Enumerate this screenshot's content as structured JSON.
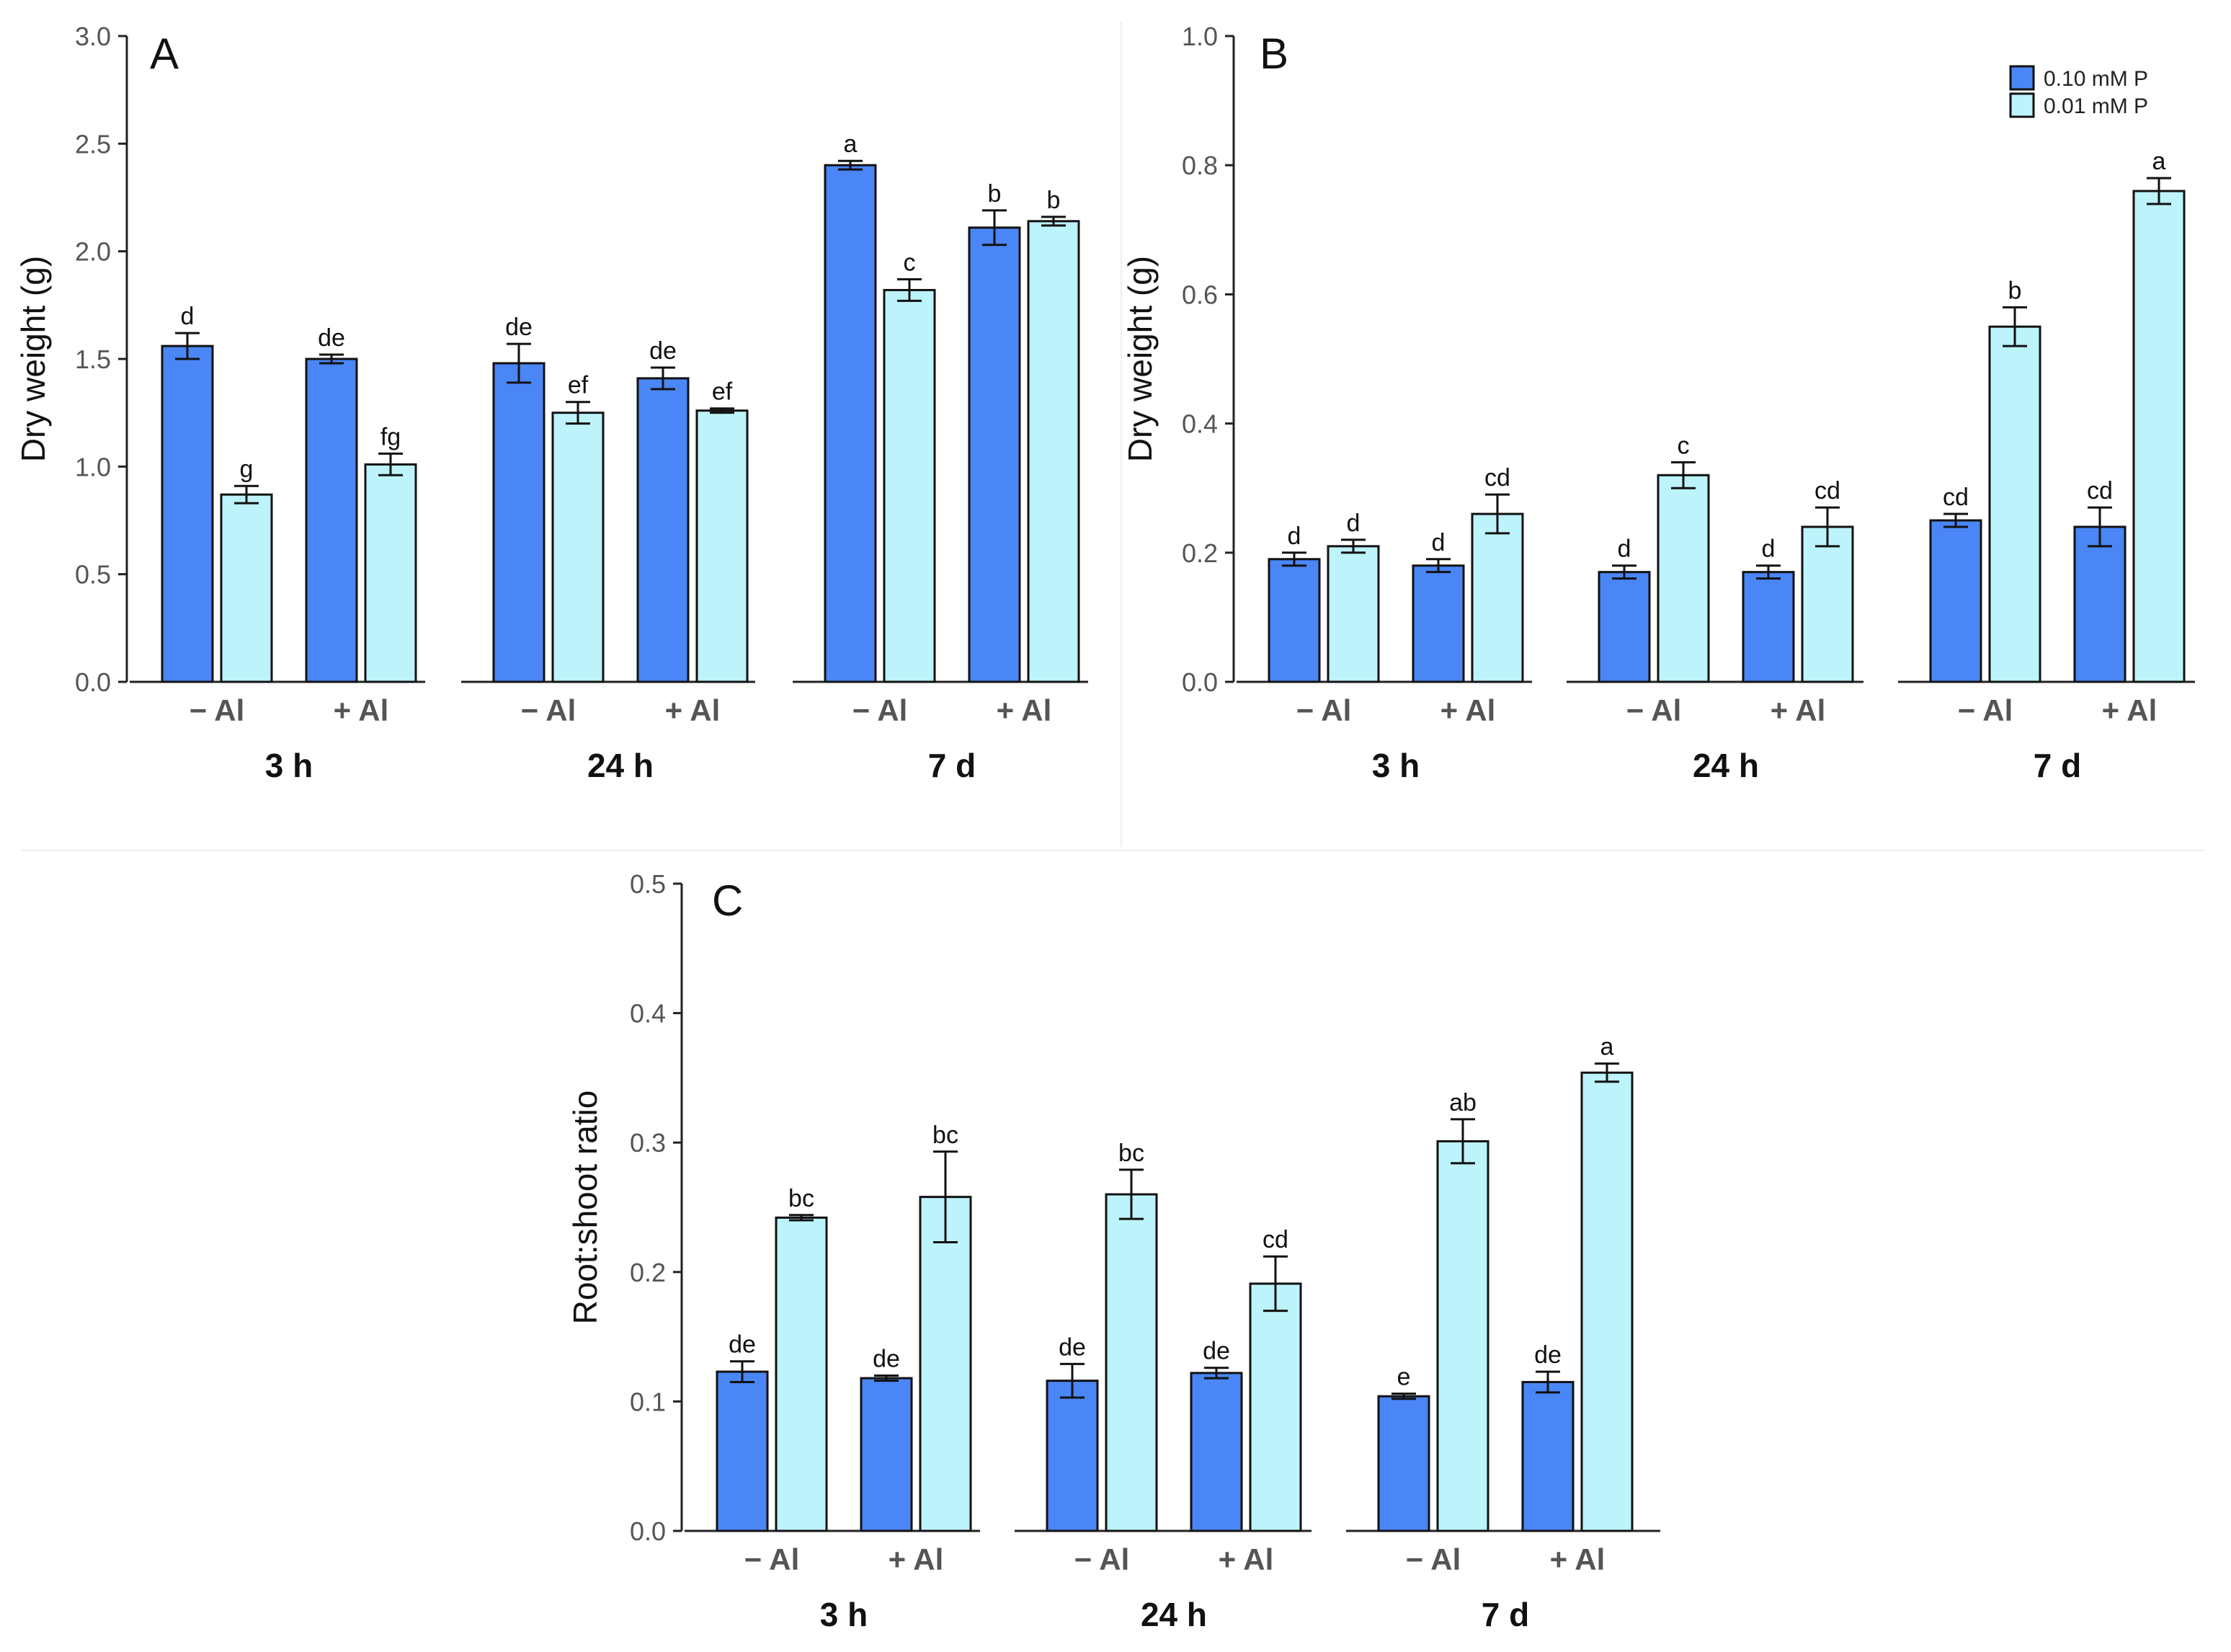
{
  "colors": {
    "high_p": "#4A86F5",
    "low_p": "#BDF3FA"
  },
  "legend": [
    "0.10 mM P",
    "0.01 mM P"
  ],
  "chart_data": [
    {
      "id": "A",
      "panel_letter": "A",
      "type": "bar",
      "ylabel": "Dry weight (g)",
      "ylim": [
        0,
        3.0
      ],
      "yticks": [
        "0.0",
        "0.5",
        "1.0",
        "1.5",
        "2.0",
        "2.5",
        "3.0"
      ],
      "groups": [
        "3 h",
        "24 h",
        "7 d"
      ],
      "subgroups": [
        "− Al",
        "+ Al"
      ],
      "series": [
        {
          "name": "0.10 mM P",
          "values": [
            1.56,
            1.5,
            1.48,
            1.41,
            2.4,
            2.11
          ],
          "errors": [
            0.06,
            0.02,
            0.09,
            0.05,
            0.02,
            0.08
          ],
          "labels": [
            "d",
            "de",
            "de",
            "de",
            "a",
            "b"
          ]
        },
        {
          "name": "0.01 mM P",
          "values": [
            0.87,
            1.01,
            1.25,
            1.26,
            1.82,
            2.14
          ],
          "errors": [
            0.04,
            0.05,
            0.05,
            0.01,
            0.05,
            0.02
          ],
          "labels": [
            "g",
            "fg",
            "ef",
            "ef",
            "c",
            "b"
          ]
        }
      ]
    },
    {
      "id": "B",
      "panel_letter": "B",
      "type": "bar",
      "ylabel": "Dry weight (g)",
      "ylim": [
        0,
        1.0
      ],
      "yticks": [
        "0.0",
        "0.2",
        "0.4",
        "0.6",
        "0.8",
        "1.0"
      ],
      "groups": [
        "3 h",
        "24 h",
        "7 d"
      ],
      "subgroups": [
        "− Al",
        "+ Al"
      ],
      "series": [
        {
          "name": "0.10 mM P",
          "values": [
            0.19,
            0.18,
            0.17,
            0.17,
            0.25,
            0.24
          ],
          "errors": [
            0.01,
            0.01,
            0.01,
            0.01,
            0.01,
            0.03
          ],
          "labels": [
            "d",
            "d",
            "d",
            "d",
            "cd",
            "cd"
          ]
        },
        {
          "name": "0.01 mM P",
          "values": [
            0.21,
            0.26,
            0.32,
            0.24,
            0.55,
            0.76
          ],
          "errors": [
            0.01,
            0.03,
            0.02,
            0.03,
            0.03,
            0.02
          ],
          "labels": [
            "d",
            "cd",
            "c",
            "cd",
            "b",
            "a"
          ]
        }
      ]
    },
    {
      "id": "C",
      "panel_letter": "C",
      "type": "bar",
      "ylabel": "Root:shoot ratio",
      "ylim": [
        0,
        0.5
      ],
      "yticks": [
        "0.0",
        "0.1",
        "0.2",
        "0.3",
        "0.4",
        "0.5"
      ],
      "groups": [
        "3 h",
        "24 h",
        "7 d"
      ],
      "subgroups": [
        "− Al",
        "+ Al"
      ],
      "series": [
        {
          "name": "0.10 mM P",
          "values": [
            0.123,
            0.118,
            0.116,
            0.122,
            0.104,
            0.115
          ],
          "errors": [
            0.008,
            0.002,
            0.013,
            0.004,
            0.002,
            0.008
          ],
          "labels": [
            "de",
            "de",
            "de",
            "de",
            "e",
            "de"
          ]
        },
        {
          "name": "0.01 mM P",
          "values": [
            0.242,
            0.258,
            0.26,
            0.191,
            0.301,
            0.354
          ],
          "errors": [
            0.002,
            0.035,
            0.019,
            0.021,
            0.017,
            0.007
          ],
          "labels": [
            "bc",
            "bc",
            "bc",
            "cd",
            "ab",
            "a"
          ]
        }
      ]
    }
  ]
}
